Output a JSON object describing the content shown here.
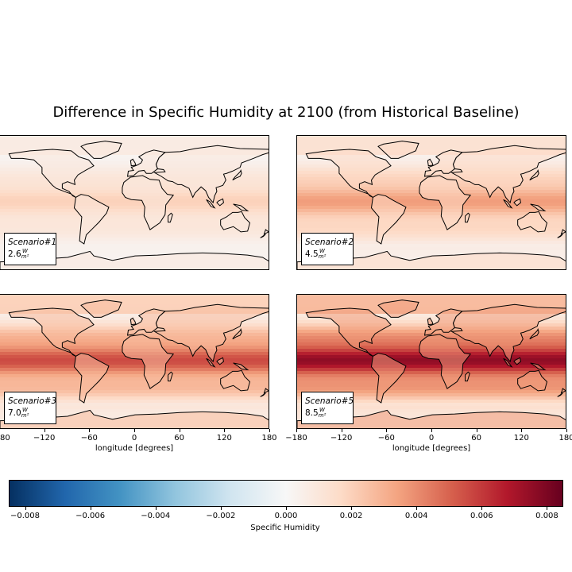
{
  "figure": {
    "title": "Difference in Specific Humidity at 2100 (from Historical Baseline)"
  },
  "panels": [
    {
      "scenario": "Scenario#1",
      "forcing": "2.6",
      "unit_num": "W",
      "unit_den": "m²",
      "intensity": 0.25
    },
    {
      "scenario": "Scenario#2",
      "forcing": "4.5",
      "unit_num": "W",
      "unit_den": "m²",
      "intensity": 0.45
    },
    {
      "scenario": "Scenario#3",
      "forcing": "7.0",
      "unit_num": "W",
      "unit_den": "m²",
      "intensity": 0.7
    },
    {
      "scenario": "Scenario#5",
      "forcing": "8.5",
      "unit_num": "W",
      "unit_den": "m²",
      "intensity": 0.95
    }
  ],
  "x_axis": {
    "label": "longitude [degrees]",
    "ticks": [
      "−180",
      "−120",
      "−60",
      "0",
      "60",
      "120",
      "180"
    ]
  },
  "colorbar": {
    "label": "Specific Humidity",
    "ticks": [
      "−0.008",
      "−0.006",
      "−0.004",
      "−0.002",
      "0.000",
      "0.002",
      "0.004",
      "0.006",
      "0.008"
    ],
    "range": [
      -0.0085,
      0.0085
    ],
    "colormap": "RdBu_r"
  },
  "colors": {
    "low": "#053061",
    "mid": "#f7f7f7",
    "high": "#67001f"
  }
}
